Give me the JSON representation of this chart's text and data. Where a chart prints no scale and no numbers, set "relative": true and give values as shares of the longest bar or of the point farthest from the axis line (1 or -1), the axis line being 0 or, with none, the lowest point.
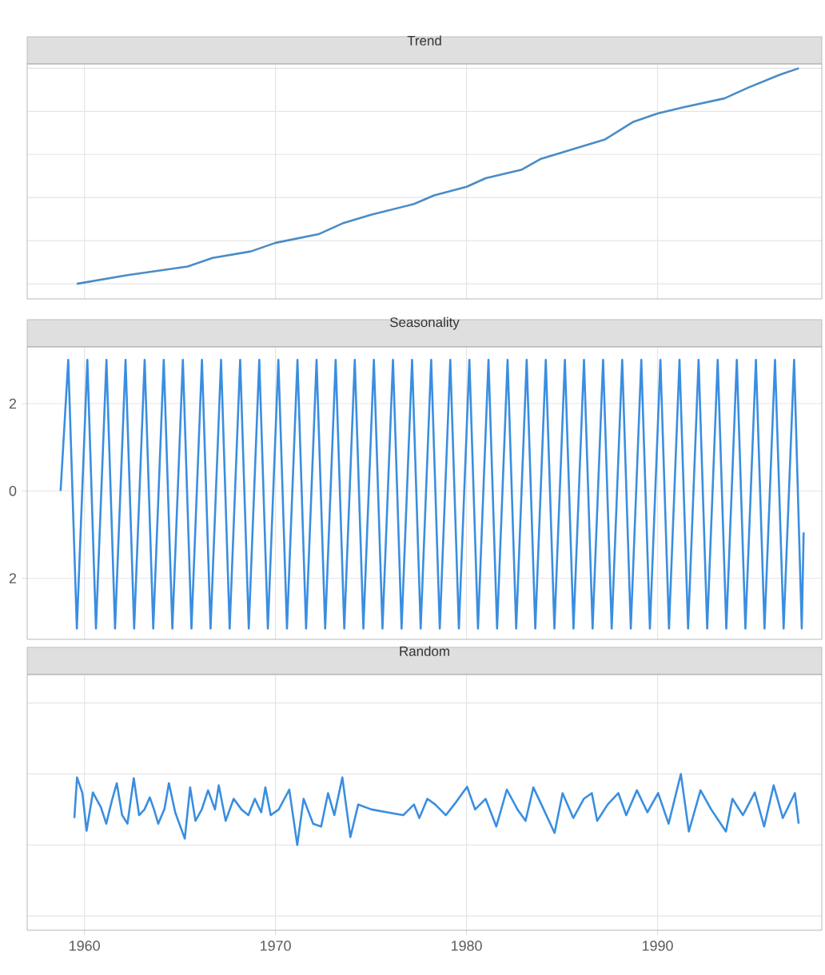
{
  "chart_data": [
    {
      "type": "line",
      "title": "Trend",
      "relative": true,
      "color": "#4a8cc6",
      "grid": true,
      "tick_labels": false,
      "xlim": [
        1957,
        1998.6
      ],
      "xticks": [
        1960,
        1970,
        1980,
        1990
      ],
      "x": [
        1959.6,
        1962.25,
        1965.4,
        1966.7,
        1968.7,
        1970.0,
        1972.25,
        1973.5,
        1975.0,
        1977.25,
        1978.3,
        1980.0,
        1981.0,
        1982.9,
        1983.9,
        1987.25,
        1988.7,
        1990.0,
        1991.4,
        1993.5,
        1994.75,
        1996.4,
        1997.4
      ],
      "values": [
        0,
        0.04,
        0.08,
        0.12,
        0.15,
        0.19,
        0.23,
        0.28,
        0.32,
        0.37,
        0.41,
        0.45,
        0.49,
        0.53,
        0.58,
        0.67,
        0.75,
        0.79,
        0.82,
        0.86,
        0.91,
        0.97,
        1.0
      ]
    },
    {
      "type": "line",
      "title": "Seasonality",
      "color": "#3a8ee0",
      "grid": true,
      "tick_labels": "y",
      "xlim": [
        1957,
        1998.6
      ],
      "xticks": [
        1960,
        1970,
        1980,
        1990
      ],
      "ylim": [
        -3.4,
        3.3
      ],
      "yticks": [
        {
          "value": -2,
          "label": "2"
        },
        0,
        2
      ],
      "x": [
        1958.75,
        1959.15,
        1959.6,
        1960.15,
        1960.6,
        1961.15,
        1961.6,
        1962.15,
        1962.6,
        1963.15,
        1963.6,
        1964.15,
        1964.6,
        1965.15,
        1965.6,
        1966.15,
        1966.6,
        1967.15,
        1967.6,
        1968.15,
        1968.6,
        1969.15,
        1969.6,
        1970.15,
        1970.6,
        1971.15,
        1971.6,
        1972.15,
        1972.6,
        1973.15,
        1973.6,
        1974.15,
        1974.6,
        1975.15,
        1975.6,
        1976.15,
        1976.6,
        1977.15,
        1977.6,
        1978.15,
        1978.6,
        1979.15,
        1979.6,
        1980.15,
        1980.6,
        1981.15,
        1981.6,
        1982.15,
        1982.6,
        1983.15,
        1983.6,
        1984.15,
        1984.6,
        1985.15,
        1985.6,
        1986.15,
        1986.6,
        1987.15,
        1987.6,
        1988.15,
        1988.6,
        1989.15,
        1989.6,
        1990.15,
        1990.6,
        1991.15,
        1991.6,
        1992.15,
        1992.6,
        1993.15,
        1993.6,
        1994.15,
        1994.6,
        1995.15,
        1995.6,
        1996.15,
        1996.6,
        1997.15,
        1997.55,
        1997.65
      ],
      "values": [
        0,
        3.0,
        -3.15,
        3.0,
        -3.15,
        3.0,
        -3.15,
        3.0,
        -3.15,
        3.0,
        -3.15,
        3.0,
        -3.15,
        3.0,
        -3.15,
        3.0,
        -3.15,
        3.0,
        -3.15,
        3.0,
        -3.15,
        3.0,
        -3.15,
        3.0,
        -3.15,
        3.0,
        -3.15,
        3.0,
        -3.15,
        3.0,
        -3.15,
        3.0,
        -3.15,
        3.0,
        -3.15,
        3.0,
        -3.15,
        3.0,
        -3.15,
        3.0,
        -3.15,
        3.0,
        -3.15,
        3.0,
        -3.15,
        3.0,
        -3.15,
        3.0,
        -3.15,
        3.0,
        -3.15,
        3.0,
        -3.15,
        3.0,
        -3.15,
        3.0,
        -3.15,
        3.0,
        -3.15,
        3.0,
        -3.15,
        3.0,
        -3.15,
        3.0,
        -3.15,
        3.0,
        -3.15,
        3.0,
        -3.15,
        3.0,
        -3.15,
        3.0,
        -3.15,
        3.0,
        -3.15,
        3.0,
        -3.15,
        3.0,
        -3.15,
        -0.95
      ]
    },
    {
      "type": "line",
      "title": "Random",
      "relative": true,
      "color": "#3a8ee0",
      "grid": true,
      "tick_labels": "x",
      "xlim": [
        1957,
        1998.6
      ],
      "xticks": [
        1960,
        1970,
        1980,
        1990
      ],
      "x": [
        1959.47,
        1959.61,
        1959.89,
        1960.11,
        1960.44,
        1960.86,
        1961.14,
        1961.42,
        1961.69,
        1961.97,
        1962.25,
        1962.58,
        1962.86,
        1963.14,
        1963.42,
        1963.64,
        1963.86,
        1964.19,
        1964.42,
        1964.75,
        1965.25,
        1965.53,
        1965.81,
        1966.14,
        1966.47,
        1966.83,
        1967.03,
        1967.39,
        1967.81,
        1968.22,
        1968.58,
        1968.92,
        1969.25,
        1969.47,
        1969.75,
        1970.17,
        1970.72,
        1971.14,
        1971.47,
        1971.97,
        1972.39,
        1972.75,
        1973.08,
        1973.5,
        1973.92,
        1974.33,
        1975.03,
        1975.86,
        1976.69,
        1977.25,
        1977.53,
        1977.95,
        1978.36,
        1978.92,
        1979.47,
        1980.03,
        1980.45,
        1981.0,
        1981.56,
        1982.11,
        1982.67,
        1983.09,
        1983.5,
        1983.92,
        1984.61,
        1985.03,
        1985.59,
        1986.14,
        1986.56,
        1986.84,
        1987.39,
        1987.95,
        1988.36,
        1988.92,
        1989.47,
        1990.03,
        1990.58,
        1991.22,
        1991.64,
        1992.25,
        1992.81,
        1993.58,
        1993.92,
        1994.47,
        1995.09,
        1995.58,
        1996.08,
        1996.56,
        1997.19,
        1997.39
      ],
      "values": [
        0.38,
        0.95,
        0.73,
        0.2,
        0.74,
        0.53,
        0.3,
        0.61,
        0.87,
        0.42,
        0.3,
        0.94,
        0.42,
        0.5,
        0.67,
        0.5,
        0.3,
        0.51,
        0.87,
        0.46,
        0.09,
        0.81,
        0.34,
        0.5,
        0.77,
        0.5,
        0.84,
        0.34,
        0.65,
        0.5,
        0.42,
        0.65,
        0.46,
        0.81,
        0.42,
        0.5,
        0.78,
        0,
        0.65,
        0.3,
        0.26,
        0.73,
        0.42,
        0.95,
        0.11,
        0.57,
        0.5,
        0.46,
        0.42,
        0.57,
        0.38,
        0.65,
        0.57,
        0.42,
        0.61,
        0.82,
        0.5,
        0.65,
        0.26,
        0.78,
        0.5,
        0.34,
        0.81,
        0.57,
        0.17,
        0.73,
        0.38,
        0.65,
        0.73,
        0.34,
        0.57,
        0.73,
        0.42,
        0.77,
        0.46,
        0.73,
        0.3,
        1.0,
        0.19,
        0.77,
        0.5,
        0.19,
        0.65,
        0.42,
        0.74,
        0.26,
        0.84,
        0.38,
        0.73,
        0.3
      ]
    }
  ]
}
